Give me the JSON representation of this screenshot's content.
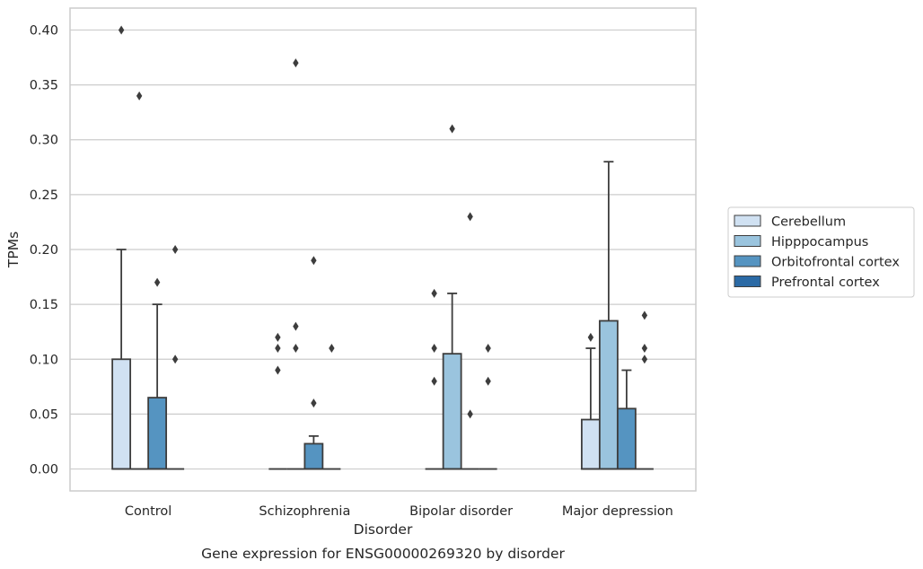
{
  "chart_data": {
    "type": "box",
    "title": "",
    "caption": "Gene expression for ENSG00000269320 by disorder",
    "xlabel": "Disorder",
    "ylabel": "TPMs",
    "ylim": [
      -0.02,
      0.42
    ],
    "yticks": [
      0.0,
      0.05,
      0.1,
      0.15,
      0.2,
      0.25,
      0.3,
      0.35,
      0.4
    ],
    "ytick_labels": [
      "0.00",
      "0.05",
      "0.10",
      "0.15",
      "0.20",
      "0.25",
      "0.30",
      "0.35",
      "0.40"
    ],
    "grid": "horizontal",
    "legend_position": "right, outside plot",
    "categories": [
      "Control",
      "Schizophrenia",
      "Bipolar disorder",
      "Major depression"
    ],
    "series": [
      {
        "name": "Cerebellum",
        "color": "#d0e1f2",
        "boxes": [
          {
            "q1": 0.0,
            "median": 0.0,
            "q3": 0.1,
            "whisker_low": 0.0,
            "whisker_high": 0.2,
            "outliers": [
              0.4
            ]
          },
          {
            "q1": 0.0,
            "median": 0.0,
            "q3": 0.0,
            "whisker_low": 0.0,
            "whisker_high": 0.0,
            "outliers": [
              0.09,
              0.11,
              0.12
            ]
          },
          {
            "q1": 0.0,
            "median": 0.0,
            "q3": 0.0,
            "whisker_low": 0.0,
            "whisker_high": 0.0,
            "outliers": [
              0.08,
              0.11,
              0.16
            ]
          },
          {
            "q1": 0.0,
            "median": 0.0,
            "q3": 0.045,
            "whisker_low": 0.0,
            "whisker_high": 0.11,
            "outliers": [
              0.12
            ]
          }
        ]
      },
      {
        "name": "Hipppocampus",
        "color": "#9ac4de",
        "boxes": [
          {
            "q1": 0.0,
            "median": 0.0,
            "q3": 0.0,
            "whisker_low": 0.0,
            "whisker_high": 0.0,
            "outliers": [
              0.34
            ]
          },
          {
            "q1": 0.0,
            "median": 0.0,
            "q3": 0.0,
            "whisker_low": 0.0,
            "whisker_high": 0.0,
            "outliers": [
              0.11,
              0.13,
              0.37
            ]
          },
          {
            "q1": 0.0,
            "median": 0.0,
            "q3": 0.105,
            "whisker_low": 0.0,
            "whisker_high": 0.16,
            "outliers": [
              0.31
            ]
          },
          {
            "q1": 0.0,
            "median": 0.0,
            "q3": 0.135,
            "whisker_low": 0.0,
            "whisker_high": 0.28,
            "outliers": []
          }
        ]
      },
      {
        "name": "Orbitofrontal cortex",
        "color": "#5594c1",
        "boxes": [
          {
            "q1": 0.0,
            "median": 0.0,
            "q3": 0.065,
            "whisker_low": 0.0,
            "whisker_high": 0.15,
            "outliers": [
              0.17
            ]
          },
          {
            "q1": 0.0,
            "median": 0.0,
            "q3": 0.023,
            "whisker_low": 0.0,
            "whisker_high": 0.03,
            "outliers": [
              0.06,
              0.19
            ]
          },
          {
            "q1": 0.0,
            "median": 0.0,
            "q3": 0.0,
            "whisker_low": 0.0,
            "whisker_high": 0.0,
            "outliers": [
              0.05,
              0.23
            ]
          },
          {
            "q1": 0.0,
            "median": 0.0,
            "q3": 0.055,
            "whisker_low": 0.0,
            "whisker_high": 0.09,
            "outliers": []
          }
        ]
      },
      {
        "name": "Prefrontal cortex",
        "color": "#2b6aa5",
        "boxes": [
          {
            "q1": 0.0,
            "median": 0.0,
            "q3": 0.0,
            "whisker_low": 0.0,
            "whisker_high": 0.0,
            "outliers": [
              0.1,
              0.2
            ]
          },
          {
            "q1": 0.0,
            "median": 0.0,
            "q3": 0.0,
            "whisker_low": 0.0,
            "whisker_high": 0.0,
            "outliers": [
              0.11
            ]
          },
          {
            "q1": 0.0,
            "median": 0.0,
            "q3": 0.0,
            "whisker_low": 0.0,
            "whisker_high": 0.0,
            "outliers": [
              0.08,
              0.11
            ]
          },
          {
            "q1": 0.0,
            "median": 0.0,
            "q3": 0.0,
            "whisker_low": 0.0,
            "whisker_high": 0.0,
            "outliers": [
              0.1,
              0.11,
              0.14
            ]
          }
        ]
      }
    ],
    "colors": {
      "grid": "#cccccc",
      "frame": "#cccccc",
      "edge": "#3d3d3d"
    }
  }
}
